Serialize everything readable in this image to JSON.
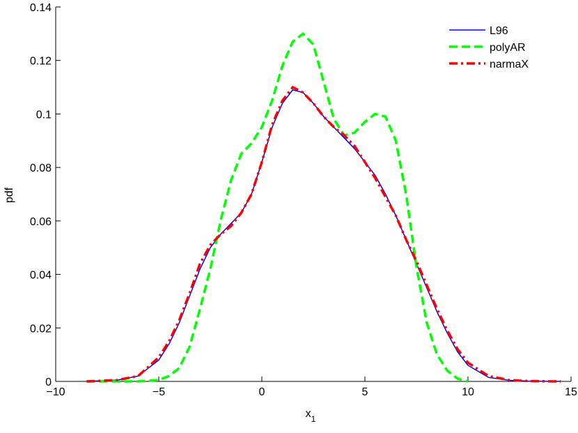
{
  "chart_data": {
    "type": "line",
    "xlabel": "x",
    "xlabel_sub": "1",
    "ylabel": "pdf",
    "x": [
      -8.5,
      -7,
      -6,
      -5,
      -4.5,
      -4,
      -3.5,
      -3,
      -2.5,
      -2,
      -1.5,
      -1,
      -0.5,
      0,
      0.5,
      1,
      1.5,
      2,
      2.5,
      3,
      3.5,
      4,
      4.5,
      5,
      5.5,
      6,
      6.5,
      7,
      7.5,
      8,
      8.5,
      9,
      9.5,
      10,
      11,
      12,
      13,
      14.5
    ],
    "series": [
      {
        "name": "L96",
        "color": "#0000ff",
        "linestyle": "solid",
        "values": [
          0,
          0.0005,
          0.002,
          0.008,
          0.014,
          0.022,
          0.032,
          0.042,
          0.05,
          0.055,
          0.059,
          0.063,
          0.07,
          0.082,
          0.095,
          0.104,
          0.109,
          0.108,
          0.104,
          0.099,
          0.095,
          0.091,
          0.087,
          0.082,
          0.077,
          0.07,
          0.062,
          0.053,
          0.044,
          0.035,
          0.026,
          0.018,
          0.011,
          0.006,
          0.0015,
          0.0004,
          0.0001,
          0
        ]
      },
      {
        "name": "polyAR",
        "color": "#00ff00",
        "linestyle": "dashed",
        "values": [
          0,
          0,
          0,
          0.0005,
          0.002,
          0.005,
          0.013,
          0.027,
          0.042,
          0.06,
          0.075,
          0.085,
          0.089,
          0.095,
          0.105,
          0.118,
          0.127,
          0.13,
          0.126,
          0.112,
          0.098,
          0.092,
          0.093,
          0.097,
          0.1,
          0.099,
          0.09,
          0.07,
          0.043,
          0.022,
          0.01,
          0.004,
          0.001,
          0,
          null,
          null,
          null,
          null
        ]
      },
      {
        "name": "narmaX",
        "color": "#ff0000",
        "linestyle": "dashdot",
        "values": [
          0,
          0.0005,
          0.002,
          0.009,
          0.015,
          0.023,
          0.033,
          0.044,
          0.051,
          0.055,
          0.058,
          0.063,
          0.07,
          0.082,
          0.096,
          0.105,
          0.11,
          0.108,
          0.104,
          0.099,
          0.095,
          0.092,
          0.088,
          0.082,
          0.076,
          0.069,
          0.062,
          0.053,
          0.045,
          0.036,
          0.027,
          0.019,
          0.012,
          0.007,
          0.002,
          0.0005,
          0.0001,
          0
        ]
      }
    ],
    "xlim": [
      -10,
      15
    ],
    "xticks": [
      {
        "value": -10,
        "label": "−10"
      },
      {
        "value": -5,
        "label": "−5"
      },
      0,
      5,
      10,
      15
    ],
    "ylim": [
      0,
      0.14
    ],
    "yticks": [
      0,
      0.02,
      0.04,
      0.06,
      0.08,
      0.1,
      0.12,
      0.14
    ],
    "grid": false,
    "legend": "upper right"
  }
}
